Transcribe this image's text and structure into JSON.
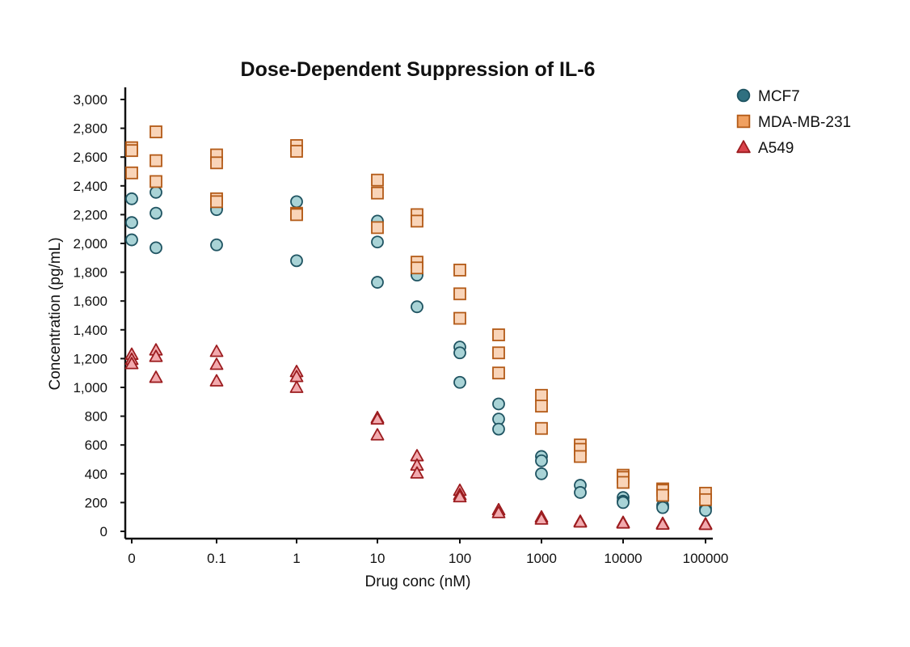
{
  "chart_data": {
    "type": "scatter",
    "title": "Dose-Dependent Suppression of IL-6",
    "xlabel": "Drug conc (nM)",
    "ylabel": "Concentration (pg/mL)",
    "ylim": [
      0,
      3000
    ],
    "y_ticks": [
      "0",
      "200",
      "400",
      "600",
      "800",
      "1,000",
      "1,200",
      "1,400",
      "1,600",
      "1,800",
      "2,000",
      "2,200",
      "2,400",
      "2,600",
      "2,800",
      "3,000"
    ],
    "x_tick_labels": [
      "0",
      "0.1",
      "1",
      "10",
      "100",
      "1000",
      "10000",
      "100000"
    ],
    "x_scale": "log",
    "x_concentrations": [
      0,
      0.03,
      0.1,
      1,
      10,
      30,
      100,
      300,
      1000,
      3000,
      10000,
      30000,
      100000
    ],
    "grid": false,
    "legend_position": "top-right",
    "series": [
      {
        "name": "MCF7",
        "marker": "circle",
        "fill": "#a9d3d6",
        "stroke": "#1f5462",
        "legend_fill": "#2f7080",
        "points": [
          {
            "x": 0,
            "y": 2310
          },
          {
            "x": 0,
            "y": 2145
          },
          {
            "x": 0,
            "y": 2025
          },
          {
            "x": 0.03,
            "y": 2355
          },
          {
            "x": 0.03,
            "y": 2210
          },
          {
            "x": 0.03,
            "y": 1970
          },
          {
            "x": 0.1,
            "y": 2245
          },
          {
            "x": 0.1,
            "y": 2235
          },
          {
            "x": 0.1,
            "y": 1990
          },
          {
            "x": 1,
            "y": 2290
          },
          {
            "x": 1,
            "y": 1880
          },
          {
            "x": 10,
            "y": 2155
          },
          {
            "x": 10,
            "y": 2010
          },
          {
            "x": 10,
            "y": 1730
          },
          {
            "x": 30,
            "y": 1790
          },
          {
            "x": 30,
            "y": 1780
          },
          {
            "x": 30,
            "y": 1560
          },
          {
            "x": 100,
            "y": 1280
          },
          {
            "x": 100,
            "y": 1240
          },
          {
            "x": 100,
            "y": 1035
          },
          {
            "x": 300,
            "y": 885
          },
          {
            "x": 300,
            "y": 780
          },
          {
            "x": 300,
            "y": 710
          },
          {
            "x": 1000,
            "y": 520
          },
          {
            "x": 1000,
            "y": 490
          },
          {
            "x": 1000,
            "y": 400
          },
          {
            "x": 3000,
            "y": 320
          },
          {
            "x": 3000,
            "y": 270
          },
          {
            "x": 10000,
            "y": 235
          },
          {
            "x": 10000,
            "y": 210
          },
          {
            "x": 10000,
            "y": 200
          },
          {
            "x": 30000,
            "y": 180
          },
          {
            "x": 30000,
            "y": 165
          },
          {
            "x": 100000,
            "y": 160
          },
          {
            "x": 100000,
            "y": 145
          }
        ]
      },
      {
        "name": "MDA-MB-231",
        "marker": "square",
        "fill": "#f9d4b8",
        "stroke": "#b35a17",
        "legend_fill": "#f0a060",
        "points": [
          {
            "x": 0,
            "y": 2665
          },
          {
            "x": 0,
            "y": 2645
          },
          {
            "x": 0,
            "y": 2490
          },
          {
            "x": 0.03,
            "y": 2775
          },
          {
            "x": 0.03,
            "y": 2575
          },
          {
            "x": 0.03,
            "y": 2430
          },
          {
            "x": 0.1,
            "y": 2615
          },
          {
            "x": 0.1,
            "y": 2560
          },
          {
            "x": 0.1,
            "y": 2310
          },
          {
            "x": 0.1,
            "y": 2290
          },
          {
            "x": 1,
            "y": 2680
          },
          {
            "x": 1,
            "y": 2640
          },
          {
            "x": 1,
            "y": 2210
          },
          {
            "x": 1,
            "y": 2200
          },
          {
            "x": 10,
            "y": 2440
          },
          {
            "x": 10,
            "y": 2350
          },
          {
            "x": 10,
            "y": 2110
          },
          {
            "x": 30,
            "y": 2200
          },
          {
            "x": 30,
            "y": 2155
          },
          {
            "x": 30,
            "y": 1870
          },
          {
            "x": 30,
            "y": 1830
          },
          {
            "x": 100,
            "y": 1815
          },
          {
            "x": 100,
            "y": 1650
          },
          {
            "x": 100,
            "y": 1480
          },
          {
            "x": 300,
            "y": 1365
          },
          {
            "x": 300,
            "y": 1240
          },
          {
            "x": 300,
            "y": 1100
          },
          {
            "x": 1000,
            "y": 945
          },
          {
            "x": 1000,
            "y": 870
          },
          {
            "x": 1000,
            "y": 715
          },
          {
            "x": 3000,
            "y": 600
          },
          {
            "x": 3000,
            "y": 570
          },
          {
            "x": 3000,
            "y": 520
          },
          {
            "x": 10000,
            "y": 390
          },
          {
            "x": 10000,
            "y": 375
          },
          {
            "x": 10000,
            "y": 340
          },
          {
            "x": 30000,
            "y": 295
          },
          {
            "x": 30000,
            "y": 285
          },
          {
            "x": 30000,
            "y": 250
          },
          {
            "x": 100000,
            "y": 265
          },
          {
            "x": 100000,
            "y": 220
          }
        ]
      },
      {
        "name": "A549",
        "marker": "triangle",
        "fill": "#f2aaae",
        "stroke": "#9c1c1f",
        "legend_fill": "#d9434b",
        "points": [
          {
            "x": 0,
            "y": 1230
          },
          {
            "x": 0,
            "y": 1195
          },
          {
            "x": 0,
            "y": 1165
          },
          {
            "x": 0.03,
            "y": 1260
          },
          {
            "x": 0.03,
            "y": 1215
          },
          {
            "x": 0.03,
            "y": 1070
          },
          {
            "x": 0.1,
            "y": 1250
          },
          {
            "x": 0.1,
            "y": 1160
          },
          {
            "x": 0.1,
            "y": 1045
          },
          {
            "x": 1,
            "y": 1110
          },
          {
            "x": 1,
            "y": 1075
          },
          {
            "x": 1,
            "y": 1000
          },
          {
            "x": 10,
            "y": 790
          },
          {
            "x": 10,
            "y": 780
          },
          {
            "x": 10,
            "y": 670
          },
          {
            "x": 30,
            "y": 525
          },
          {
            "x": 30,
            "y": 460
          },
          {
            "x": 30,
            "y": 405
          },
          {
            "x": 100,
            "y": 285
          },
          {
            "x": 100,
            "y": 255
          },
          {
            "x": 100,
            "y": 240
          },
          {
            "x": 300,
            "y": 150
          },
          {
            "x": 300,
            "y": 130
          },
          {
            "x": 1000,
            "y": 100
          },
          {
            "x": 1000,
            "y": 85
          },
          {
            "x": 3000,
            "y": 70
          },
          {
            "x": 3000,
            "y": 65
          },
          {
            "x": 10000,
            "y": 62
          },
          {
            "x": 10000,
            "y": 58
          },
          {
            "x": 30000,
            "y": 55
          },
          {
            "x": 30000,
            "y": 50
          },
          {
            "x": 100000,
            "y": 52
          },
          {
            "x": 100000,
            "y": 48
          }
        ]
      }
    ]
  }
}
